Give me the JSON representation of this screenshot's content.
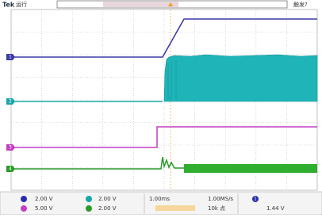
{
  "header": {
    "brand": "Tek",
    "status": "运行",
    "trigger_status": "触发?"
  },
  "channels": [
    {
      "label": "1"
    },
    {
      "label": "2"
    },
    {
      "label": "3"
    },
    {
      "label": "4"
    }
  ],
  "readout": {
    "ch1_scale": "2.00 V",
    "ch2_scale": "2.00 V",
    "ch3_scale": "5.00 V",
    "ch4_scale": "2.00 V",
    "time_scale": "1.00ms",
    "sample_rate": "1.00MS/s",
    "record_length": "10k 点",
    "trigger_source": "1",
    "trigger_level": "1.44 V"
  }
}
